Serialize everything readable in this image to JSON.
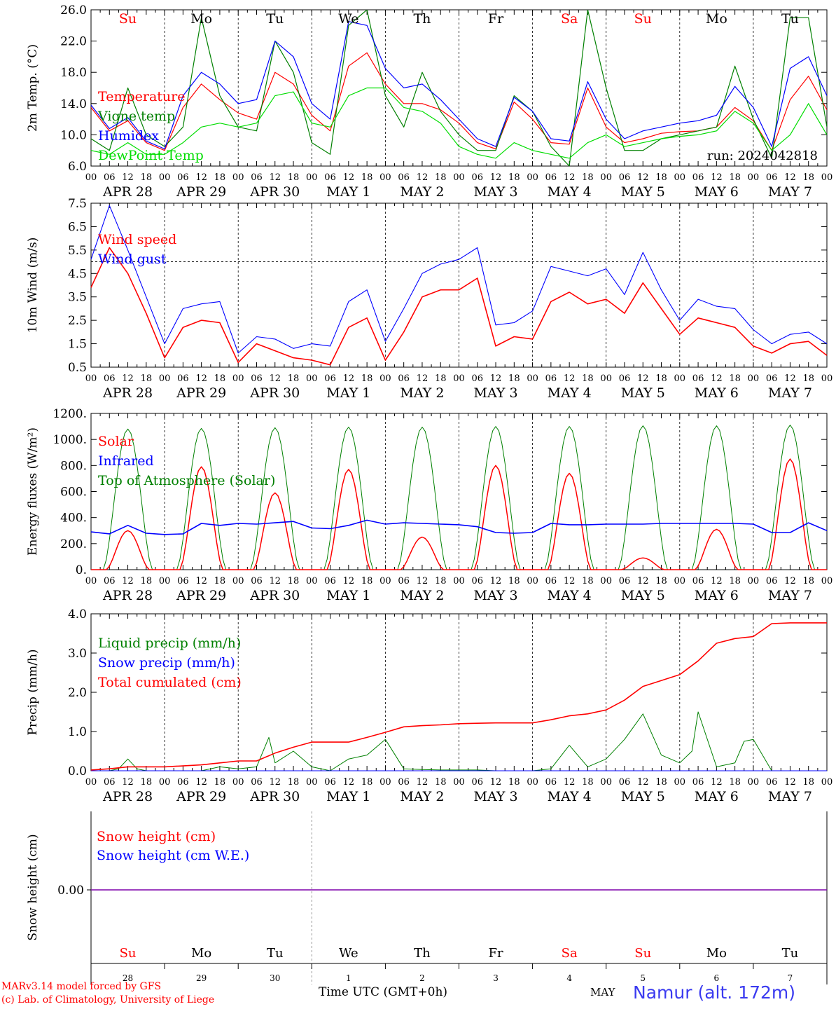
{
  "run_label": "run: 2024042818",
  "xaxis_title": "Time UTC (GMT+0h)",
  "month_label": "MAY",
  "station": "Namur (alt. 172m)",
  "credits": [
    "MARv3.14 model forced by GFS",
    "(c) Lab. of Climatology, University of Liege"
  ],
  "days": [
    "APR 28",
    "APR 29",
    "APR 30",
    "MAY  1",
    "MAY  2",
    "MAY  3",
    "MAY  4",
    "MAY  5",
    "MAY  6",
    "MAY  7"
  ],
  "weekdays": [
    "Su",
    "Mo",
    "Tu",
    "We",
    "Th",
    "Fr",
    "Sa",
    "Su",
    "Mo",
    "Tu"
  ],
  "weekday_colors": [
    "#ff0000",
    "#000000",
    "#000000",
    "#000000",
    "#000000",
    "#000000",
    "#ff0000",
    "#ff0000",
    "#000000",
    "#000000"
  ],
  "hour_ticks": [
    "00",
    "06",
    "12",
    "18"
  ],
  "day_numbers": [
    "28",
    "29",
    "30",
    "1",
    "2",
    "3",
    "4",
    "5",
    "6",
    "7"
  ],
  "colors": {
    "red": "#ff0000",
    "green": "#008000",
    "blue": "#0000ff",
    "lightgreen": "#00dd00",
    "purple": "#7f00aa"
  },
  "chart_data": [
    {
      "type": "line",
      "ylabel": "2m Temp. (°C)",
      "ylim": [
        6,
        26
      ],
      "yticks": [
        "6.0",
        "10.0",
        "14.0",
        "18.0",
        "22.0",
        "26.0"
      ],
      "x_unit": "hours since Apr 28 00 UTC",
      "series": [
        {
          "name": "Temperature",
          "color": "#ff0000",
          "x": [
            0,
            6,
            12,
            18,
            24,
            30,
            36,
            42,
            48,
            54,
            60,
            66,
            72,
            78,
            84,
            90,
            96,
            102,
            108,
            114,
            120,
            126,
            132,
            138,
            144,
            150,
            156,
            162,
            168,
            174,
            180,
            186,
            192,
            198,
            204,
            210,
            216,
            222,
            228,
            234,
            240
          ],
          "y": [
            13.5,
            10.5,
            11.8,
            9.0,
            8.0,
            13.5,
            16.5,
            14.5,
            12.8,
            12.0,
            18.0,
            16.5,
            12.5,
            10.5,
            18.8,
            20.5,
            16.5,
            14.0,
            14.0,
            13.2,
            11.5,
            9.0,
            8.2,
            14.2,
            12.0,
            9.0,
            8.8,
            16.0,
            11.0,
            9.0,
            9.5,
            10.2,
            10.4,
            10.5,
            11.0,
            13.5,
            11.8,
            8.0,
            14.5,
            17.5,
            13.2
          ]
        },
        {
          "name": "Vigne temp",
          "color": "#008000",
          "x": [
            0,
            6,
            12,
            18,
            24,
            30,
            36,
            42,
            48,
            54,
            60,
            66,
            72,
            78,
            84,
            90,
            96,
            102,
            108,
            114,
            120,
            126,
            132,
            138,
            144,
            150,
            156,
            162,
            168,
            174,
            180,
            186,
            192,
            198,
            204,
            210,
            216,
            222,
            228,
            234,
            240
          ],
          "y": [
            9.5,
            8.0,
            16.0,
            10.0,
            8.5,
            11.0,
            25.0,
            15.0,
            11.0,
            10.5,
            22.0,
            18.0,
            9.0,
            7.5,
            24.0,
            26.0,
            15.0,
            11.0,
            18.0,
            13.0,
            10.0,
            8.0,
            8.0,
            15.0,
            13.0,
            8.5,
            6.0,
            26.0,
            16.0,
            8.0,
            8.0,
            9.5,
            10.0,
            10.5,
            11.0,
            18.8,
            12.0,
            7.0,
            25.0,
            25.0,
            11.0
          ]
        },
        {
          "name": "Humidex",
          "color": "#0000ff",
          "x": [
            0,
            6,
            12,
            18,
            24,
            30,
            36,
            42,
            48,
            54,
            60,
            66,
            72,
            78,
            84,
            90,
            96,
            102,
            108,
            114,
            120,
            126,
            132,
            138,
            144,
            150,
            156,
            162,
            168,
            174,
            180,
            186,
            192,
            198,
            204,
            210,
            216,
            222,
            228,
            234,
            240
          ],
          "y": [
            13.8,
            10.8,
            12.2,
            9.2,
            8.2,
            15.0,
            18.0,
            16.5,
            14.0,
            14.5,
            22.0,
            20.0,
            14.0,
            12.0,
            24.5,
            24.0,
            18.5,
            16.0,
            16.5,
            14.5,
            12.0,
            9.5,
            8.5,
            14.8,
            13.0,
            9.5,
            9.2,
            16.8,
            12.0,
            9.5,
            10.5,
            11.0,
            11.5,
            11.8,
            12.5,
            16.2,
            13.5,
            8.5,
            18.5,
            20.0,
            15.0
          ]
        },
        {
          "name": "DewPoint Temp",
          "color": "#00dd00",
          "x": [
            0,
            6,
            12,
            18,
            24,
            30,
            36,
            42,
            48,
            54,
            60,
            66,
            72,
            78,
            84,
            90,
            96,
            102,
            108,
            114,
            120,
            126,
            132,
            138,
            144,
            150,
            156,
            162,
            168,
            174,
            180,
            186,
            192,
            198,
            204,
            210,
            216,
            222,
            228,
            234,
            240
          ],
          "y": [
            8.0,
            7.5,
            9.0,
            7.5,
            7.5,
            9.0,
            11.0,
            11.5,
            11.0,
            11.5,
            15.0,
            15.5,
            11.5,
            11.0,
            15.0,
            16.0,
            16.0,
            13.5,
            13.0,
            11.5,
            8.5,
            7.5,
            7.0,
            9.0,
            8.0,
            7.5,
            7.0,
            9.0,
            10.0,
            8.5,
            9.0,
            9.5,
            9.8,
            10.0,
            10.5,
            13.0,
            11.5,
            8.0,
            10.0,
            14.0,
            10.0
          ]
        }
      ]
    },
    {
      "type": "line",
      "ylabel": "10m Wind (m/s)",
      "ylim": [
        0.5,
        7.5
      ],
      "yticks": [
        "0.5",
        "1.5",
        "2.5",
        "3.5",
        "4.5",
        "5.5",
        "6.5",
        "7.5"
      ],
      "reference_line": 5.0,
      "series": [
        {
          "name": "Wind speed",
          "color": "#ff0000",
          "x": [
            0,
            6,
            12,
            18,
            24,
            30,
            36,
            42,
            48,
            54,
            60,
            66,
            72,
            78,
            84,
            90,
            96,
            102,
            108,
            114,
            120,
            126,
            132,
            138,
            144,
            150,
            156,
            162,
            168,
            174,
            180,
            186,
            192,
            198,
            204,
            210,
            216,
            222,
            228,
            234,
            240
          ],
          "y": [
            3.9,
            5.6,
            4.5,
            2.8,
            0.9,
            2.2,
            2.5,
            2.4,
            0.7,
            1.5,
            1.2,
            0.9,
            0.8,
            0.6,
            2.2,
            2.6,
            0.8,
            2.0,
            3.5,
            3.8,
            3.8,
            4.3,
            1.4,
            1.8,
            1.7,
            3.3,
            3.7,
            3.2,
            3.4,
            2.8,
            4.1,
            3.0,
            1.9,
            2.6,
            2.4,
            2.2,
            1.4,
            1.1,
            1.5,
            1.6,
            1.0
          ]
        },
        {
          "name": "Wind gust",
          "color": "#0000ff",
          "x": [
            0,
            6,
            12,
            18,
            24,
            30,
            36,
            42,
            48,
            54,
            60,
            66,
            72,
            78,
            84,
            90,
            96,
            102,
            108,
            114,
            120,
            126,
            132,
            138,
            144,
            150,
            156,
            162,
            168,
            174,
            180,
            186,
            192,
            198,
            204,
            210,
            216,
            222,
            228,
            234,
            240
          ],
          "y": [
            5.1,
            7.4,
            5.5,
            3.5,
            1.5,
            3.0,
            3.2,
            3.3,
            1.1,
            1.8,
            1.7,
            1.3,
            1.5,
            1.4,
            3.3,
            3.8,
            1.6,
            3.0,
            4.5,
            4.9,
            5.1,
            5.6,
            2.3,
            2.4,
            2.9,
            4.8,
            4.6,
            4.4,
            4.7,
            3.6,
            5.4,
            3.8,
            2.5,
            3.4,
            3.1,
            3.0,
            2.1,
            1.5,
            1.9,
            2.0,
            1.5
          ]
        }
      ]
    },
    {
      "type": "line",
      "ylabel": "Energy fluxes (W/m²)",
      "ylim": [
        0,
        1200
      ],
      "yticks": [
        "0.",
        "200.",
        "400.",
        "600.",
        "800.",
        "1000.",
        "1200."
      ],
      "series": [
        {
          "name": "Solar",
          "color": "#ff0000",
          "daily_peaks": [
            300,
            790,
            590,
            770,
            250,
            800,
            740,
            90,
            310,
            850
          ]
        },
        {
          "name": "Infrared",
          "color": "#0000ff",
          "x": [
            0,
            6,
            12,
            18,
            24,
            30,
            36,
            42,
            48,
            54,
            60,
            66,
            72,
            78,
            84,
            90,
            96,
            102,
            108,
            114,
            120,
            126,
            132,
            138,
            144,
            150,
            156,
            162,
            168,
            174,
            180,
            186,
            192,
            198,
            204,
            210,
            216,
            222,
            228,
            234,
            240
          ],
          "y": [
            290,
            275,
            340,
            280,
            270,
            275,
            355,
            340,
            355,
            350,
            360,
            370,
            320,
            315,
            340,
            380,
            350,
            360,
            355,
            350,
            345,
            330,
            285,
            280,
            285,
            355,
            345,
            345,
            350,
            350,
            350,
            355,
            355,
            355,
            355,
            355,
            350,
            285,
            285,
            360,
            300
          ]
        },
        {
          "name": "Top of Atmosphere (Solar)",
          "color": "#008000",
          "daily_peaks": [
            1080,
            1085,
            1090,
            1095,
            1095,
            1100,
            1100,
            1105,
            1105,
            1110
          ]
        }
      ]
    },
    {
      "type": "line",
      "ylabel": "Precip (mm/h)",
      "ylim": [
        0,
        4
      ],
      "yticks": [
        "0.0",
        "1.0",
        "2.0",
        "3.0",
        "4.0"
      ],
      "series": [
        {
          "name": "Liquid precip (mm/h)",
          "color": "#008000",
          "x": [
            0,
            6,
            9,
            12,
            15,
            18,
            24,
            36,
            42,
            48,
            54,
            58,
            60,
            66,
            72,
            78,
            84,
            90,
            96,
            102,
            108,
            114,
            120,
            126,
            132,
            138,
            144,
            150,
            156,
            162,
            168,
            174,
            180,
            186,
            192,
            196,
            198,
            204,
            210,
            213,
            216,
            222,
            228,
            234,
            240
          ],
          "y": [
            0,
            0,
            0.05,
            0.3,
            0.05,
            0,
            0,
            0,
            0.1,
            0.05,
            0.1,
            0.85,
            0.2,
            0.5,
            0.1,
            0,
            0.3,
            0.4,
            0.8,
            0.05,
            0.03,
            0.02,
            0.02,
            0.02,
            0,
            0,
            0,
            0.05,
            0.65,
            0.1,
            0.3,
            0.8,
            1.45,
            0.4,
            0.2,
            0.5,
            1.5,
            0.1,
            0.2,
            0.75,
            0.8,
            0,
            0,
            0,
            0
          ]
        },
        {
          "name": "Snow precip (mm/h)",
          "color": "#0000ff",
          "x": [
            0,
            240
          ],
          "y": [
            0,
            0
          ]
        },
        {
          "name": "Total cumulated (cm)",
          "color": "#ff0000",
          "x": [
            0,
            6,
            12,
            18,
            24,
            36,
            42,
            48,
            54,
            60,
            66,
            72,
            78,
            84,
            90,
            96,
            102,
            108,
            114,
            120,
            126,
            132,
            138,
            144,
            150,
            156,
            162,
            168,
            174,
            180,
            186,
            192,
            198,
            204,
            210,
            216,
            222,
            228,
            234,
            240
          ],
          "y": [
            0.02,
            0.05,
            0.1,
            0.1,
            0.1,
            0.15,
            0.2,
            0.25,
            0.25,
            0.45,
            0.6,
            0.73,
            0.73,
            0.73,
            0.85,
            0.98,
            1.12,
            1.15,
            1.17,
            1.2,
            1.21,
            1.22,
            1.22,
            1.22,
            1.3,
            1.4,
            1.45,
            1.55,
            1.8,
            2.15,
            2.3,
            2.45,
            2.8,
            3.25,
            3.37,
            3.42,
            3.75,
            3.77,
            3.77,
            3.77
          ]
        }
      ]
    },
    {
      "type": "line",
      "ylabel": "Snow height (cm)",
      "yticks": [
        "0.00"
      ],
      "series": [
        {
          "name": "Snow height (cm)",
          "color": "#ff0000",
          "x": [
            0,
            240
          ],
          "y": [
            0,
            0
          ]
        },
        {
          "name": "Snow height (cm W.E.)",
          "color": "#0000ff",
          "x": [
            0,
            240
          ],
          "y": [
            0,
            0
          ]
        }
      ]
    }
  ]
}
